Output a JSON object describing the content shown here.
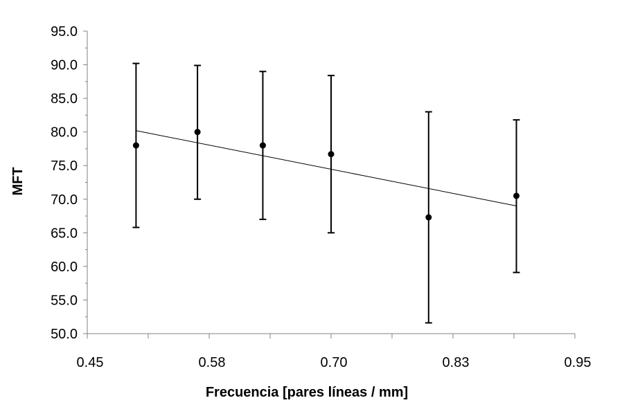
{
  "chart_data": {
    "type": "scatter",
    "xlabel": "Frecuencia [pares líneas / mm]",
    "ylabel": "MFT",
    "xlim": [
      0.45,
      0.95
    ],
    "ylim": [
      50.0,
      95.0
    ],
    "x_ticks": [
      "0.45",
      "0.58",
      "0.70",
      "0.83",
      "0.95"
    ],
    "x_tick_values": [
      0.45,
      0.575,
      0.7,
      0.825,
      0.95
    ],
    "y_ticks": [
      "50.0",
      "55.0",
      "60.0",
      "65.0",
      "70.0",
      "75.0",
      "80.0",
      "85.0",
      "90.0",
      "95.0"
    ],
    "y_tick_values": [
      50,
      55,
      60,
      65,
      70,
      75,
      80,
      85,
      90,
      95
    ],
    "grid": false,
    "series": [
      {
        "x": [
          0.5,
          0.563,
          0.63,
          0.7,
          0.8,
          0.89
        ],
        "y": [
          78.0,
          80.0,
          78.0,
          76.7,
          67.3,
          70.5
        ],
        "y_low": [
          65.8,
          70.0,
          67.0,
          65.0,
          51.6,
          59.1
        ],
        "y_high": [
          90.2,
          89.9,
          89.0,
          88.4,
          83.0,
          81.8
        ]
      }
    ],
    "trendline": {
      "type": "linear",
      "x": [
        0.5,
        0.89
      ],
      "y": [
        80.2,
        69.0
      ]
    }
  }
}
